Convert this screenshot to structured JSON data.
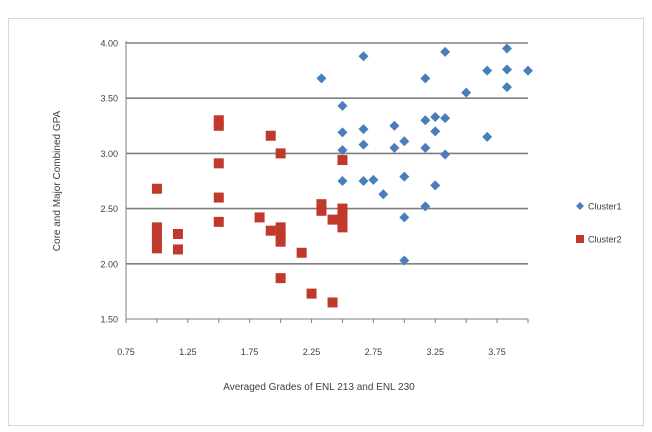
{
  "chart_data": {
    "type": "scatter",
    "title": "",
    "xlabel": "Averaged Grades of ENL 213 and ENL 230",
    "ylabel": "Core and Major Combined GPA",
    "xlim": [
      0.75,
      4.0
    ],
    "ylim": [
      1.5,
      4.0
    ],
    "x_ticks": [
      "0.75",
      "1.25",
      "1.75",
      "2.25",
      "2.75",
      "3.25",
      "3.75"
    ],
    "y_ticks": [
      "1.50",
      "2.00",
      "2.50",
      "3.00",
      "3.50",
      "4.00"
    ],
    "grid": "horizontal",
    "legend_position": "right",
    "series": [
      {
        "name": "Cluster1",
        "color": "#4a7ebb",
        "marker": "diamond",
        "points": [
          [
            2.33,
            3.68
          ],
          [
            2.67,
            3.88
          ],
          [
            2.5,
            3.43
          ],
          [
            2.5,
            3.19
          ],
          [
            2.5,
            3.03
          ],
          [
            2.5,
            2.75
          ],
          [
            2.67,
            3.22
          ],
          [
            2.67,
            3.08
          ],
          [
            2.67,
            2.75
          ],
          [
            2.75,
            2.76
          ],
          [
            2.83,
            2.63
          ],
          [
            2.92,
            3.25
          ],
          [
            2.92,
            3.05
          ],
          [
            3.0,
            3.11
          ],
          [
            3.0,
            2.79
          ],
          [
            3.0,
            2.42
          ],
          [
            3.0,
            2.03
          ],
          [
            3.17,
            3.68
          ],
          [
            3.17,
            3.3
          ],
          [
            3.17,
            3.05
          ],
          [
            3.17,
            2.52
          ],
          [
            3.25,
            3.33
          ],
          [
            3.25,
            3.2
          ],
          [
            3.25,
            2.71
          ],
          [
            3.33,
            3.92
          ],
          [
            3.33,
            3.32
          ],
          [
            3.33,
            2.99
          ],
          [
            3.5,
            3.55
          ],
          [
            3.67,
            3.75
          ],
          [
            3.67,
            3.15
          ],
          [
            3.83,
            3.95
          ],
          [
            3.83,
            3.76
          ],
          [
            3.83,
            3.6
          ],
          [
            4.0,
            3.75
          ]
        ]
      },
      {
        "name": "Cluster2",
        "color": "#c0392b",
        "marker": "square",
        "points": [
          [
            1.0,
            2.68
          ],
          [
            1.0,
            2.33
          ],
          [
            1.0,
            2.27
          ],
          [
            1.0,
            2.2
          ],
          [
            1.0,
            2.14
          ],
          [
            1.17,
            2.27
          ],
          [
            1.17,
            2.13
          ],
          [
            1.5,
            3.3
          ],
          [
            1.5,
            3.25
          ],
          [
            1.5,
            2.91
          ],
          [
            1.5,
            2.6
          ],
          [
            1.5,
            2.38
          ],
          [
            1.83,
            2.42
          ],
          [
            1.92,
            3.16
          ],
          [
            1.92,
            2.3
          ],
          [
            2.0,
            3.0
          ],
          [
            2.0,
            2.33
          ],
          [
            2.0,
            2.25
          ],
          [
            2.0,
            2.2
          ],
          [
            2.0,
            1.87
          ],
          [
            2.17,
            2.1
          ],
          [
            2.25,
            1.73
          ],
          [
            2.33,
            2.54
          ],
          [
            2.33,
            2.48
          ],
          [
            2.42,
            2.4
          ],
          [
            2.42,
            1.65
          ],
          [
            2.5,
            2.94
          ],
          [
            2.5,
            2.5
          ],
          [
            2.5,
            2.44
          ],
          [
            2.5,
            2.38
          ],
          [
            2.5,
            2.33
          ]
        ]
      }
    ]
  }
}
